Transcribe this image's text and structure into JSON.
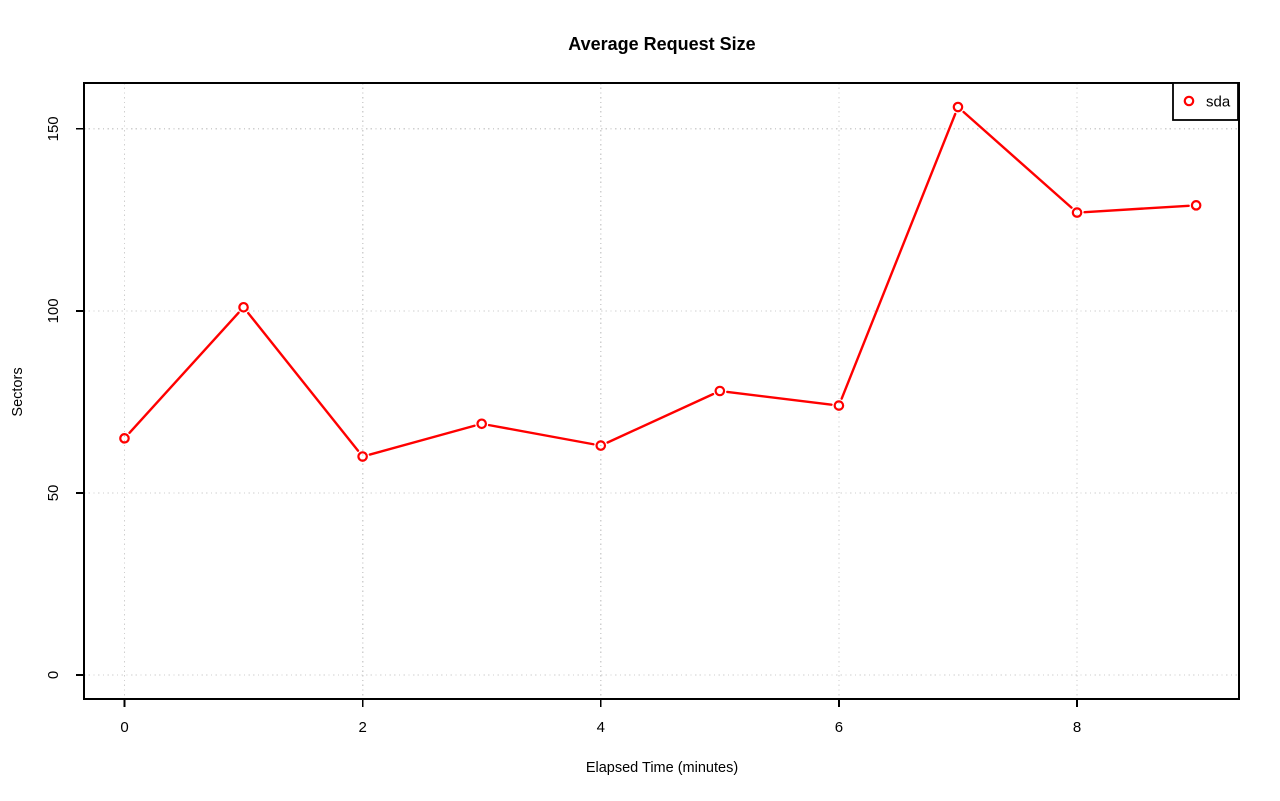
{
  "page": {
    "background": "#ffffff"
  },
  "chart_data": {
    "type": "line",
    "title": "Average Request Size",
    "xlabel": "Elapsed Time (minutes)",
    "ylabel": "Sectors",
    "x": [
      0,
      1,
      2,
      3,
      4,
      5,
      6,
      7,
      8,
      9
    ],
    "series": [
      {
        "name": "sda",
        "color": "#ff0000",
        "marker": "open-circle",
        "values": [
          65,
          101,
          60,
          69,
          63,
          78,
          74,
          156,
          127,
          129
        ]
      }
    ],
    "xticks": [
      0,
      2,
      4,
      6,
      8
    ],
    "yticks": [
      0,
      50,
      100,
      150
    ],
    "xlim": [
      -0.34,
      9.36
    ],
    "ylim": [
      -6.6,
      162.6
    ],
    "grid": true,
    "grid_style": "dotted",
    "legend_position": "top-right",
    "colors": {
      "grid": "#cfcfcf",
      "axis": "#000000",
      "text": "#000000"
    }
  }
}
